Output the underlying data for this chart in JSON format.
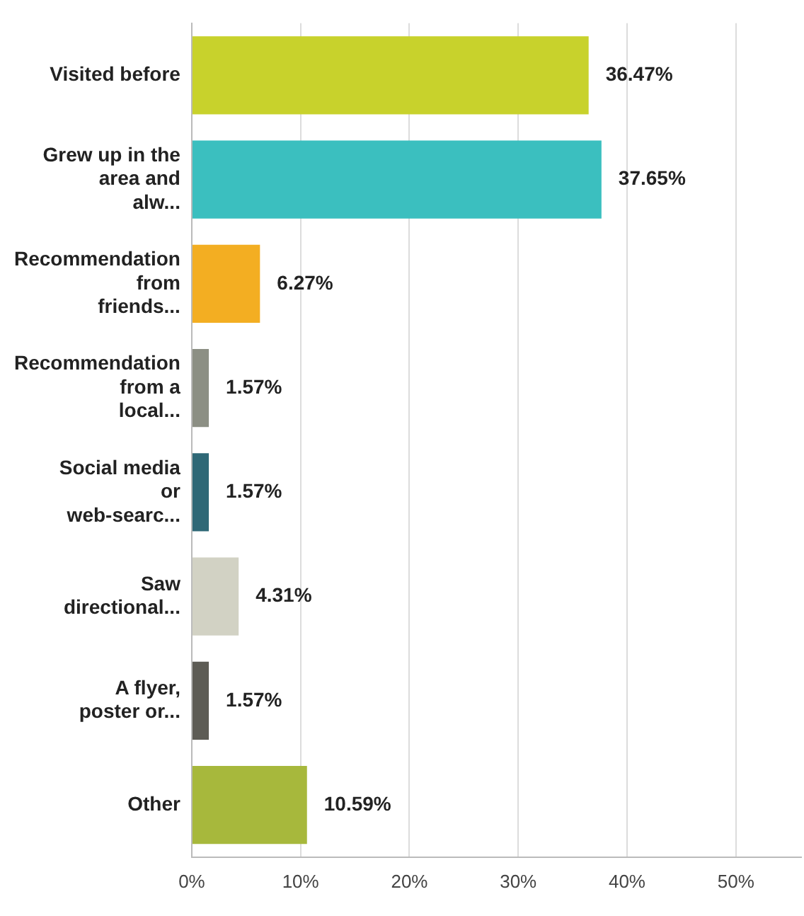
{
  "chart_data": {
    "type": "bar",
    "orientation": "horizontal",
    "categories": [
      "Visited before",
      "Grew up in the area and alw...",
      "Recommendation from friends...",
      "Recommendation from a local...",
      "Social media or web-searc...",
      "Saw directional...",
      "A flyer, poster or...",
      "Other"
    ],
    "values": [
      36.47,
      37.65,
      6.27,
      1.57,
      1.57,
      4.31,
      1.57,
      10.59
    ],
    "colors": [
      "#c8d22c",
      "#3bbfbf",
      "#f3ae22",
      "#8c8f84",
      "#2f6876",
      "#d2d2c4",
      "#5d5c55",
      "#a7b83c"
    ],
    "value_labels": [
      "36.47%",
      "37.65%",
      "6.27%",
      "1.57%",
      "1.57%",
      "4.31%",
      "1.57%",
      "10.59%"
    ],
    "xlim": [
      0,
      56
    ],
    "xticks": [
      {
        "value": 0,
        "label": "0%"
      },
      {
        "value": 10,
        "label": "10%"
      },
      {
        "value": 20,
        "label": "20%"
      },
      {
        "value": 30,
        "label": "30%"
      },
      {
        "value": 40,
        "label": "40%"
      },
      {
        "value": 50,
        "label": "50%"
      }
    ],
    "grid": "x",
    "legend": false
  }
}
